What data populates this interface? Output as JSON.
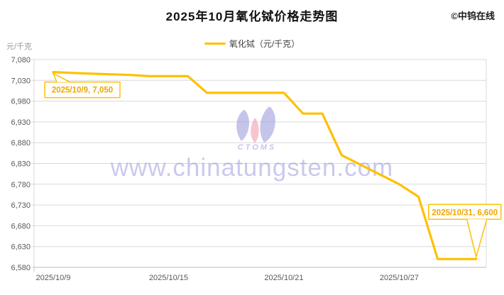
{
  "header": {
    "title": "2025年10月氧化铽价格走势图",
    "copyright": "©中钨在线"
  },
  "legend": {
    "label": "氧化铽（元/千克）"
  },
  "watermark": {
    "url_text": "www.chinatungsten.com",
    "logo_text": "CTOMS"
  },
  "chart_data": {
    "type": "line",
    "title": "2025年10月氧化铽价格走势图",
    "xlabel": "",
    "ylabel": "元/千克",
    "ylim": [
      6580,
      7080
    ],
    "y_tick_step": 50,
    "y_tick_labels": [
      "7,080",
      "7,030",
      "6,980",
      "6,930",
      "6,880",
      "6,830",
      "6,780",
      "6,730",
      "6,680",
      "6,630",
      "6,580"
    ],
    "x_tick_labels": [
      {
        "label": "2025/10/9",
        "day": 9
      },
      {
        "label": "2025/10/15",
        "day": 15
      },
      {
        "label": "2025/10/21",
        "day": 21
      },
      {
        "label": "2025/10/27",
        "day": 27
      }
    ],
    "x_range_days": [
      9,
      31
    ],
    "grid": true,
    "legend_position": "top",
    "series": [
      {
        "name": "氧化铽",
        "unit": "元/千克",
        "points": [
          {
            "date": "2025/10/9",
            "day": 9,
            "value": 7050
          },
          {
            "date": "2025/10/10",
            "day": 10,
            "value": 7048
          },
          {
            "date": "2025/10/11",
            "day": 11,
            "value": 7046
          },
          {
            "date": "2025/10/13",
            "day": 13,
            "value": 7043
          },
          {
            "date": "2025/10/14",
            "day": 14,
            "value": 7040
          },
          {
            "date": "2025/10/15",
            "day": 15,
            "value": 7040
          },
          {
            "date": "2025/10/16",
            "day": 16,
            "value": 7040
          },
          {
            "date": "2025/10/17",
            "day": 17,
            "value": 7000
          },
          {
            "date": "2025/10/20",
            "day": 20,
            "value": 7000
          },
          {
            "date": "2025/10/21",
            "day": 21,
            "value": 7000
          },
          {
            "date": "2025/10/22",
            "day": 22,
            "value": 6950
          },
          {
            "date": "2025/10/23",
            "day": 23,
            "value": 6950
          },
          {
            "date": "2025/10/24",
            "day": 24,
            "value": 6850
          },
          {
            "date": "2025/10/27",
            "day": 27,
            "value": 6780
          },
          {
            "date": "2025/10/28",
            "day": 28,
            "value": 6750
          },
          {
            "date": "2025/10/29",
            "day": 29,
            "value": 6600
          },
          {
            "date": "2025/10/30",
            "day": 30,
            "value": 6600
          },
          {
            "date": "2025/10/31",
            "day": 31,
            "value": 6600
          }
        ]
      }
    ],
    "annotations": [
      {
        "text": "2025/10/9, 7,050",
        "day": 9,
        "value": 7050,
        "side": "below"
      },
      {
        "text": "2025/10/31, 6,600",
        "day": 31,
        "value": 6600,
        "side": "above"
      }
    ]
  },
  "colors": {
    "line": "#FFC000",
    "grid": "#D9D9D9",
    "axis": "#C6C6C6",
    "tick_text": "#595959",
    "unit_text": "#9A9A9A",
    "annotation_text": "#EFA600",
    "annotation_border": "#FFC000",
    "watermark": "#9D9DDE",
    "watermark_pink": "#F2A4B8"
  }
}
